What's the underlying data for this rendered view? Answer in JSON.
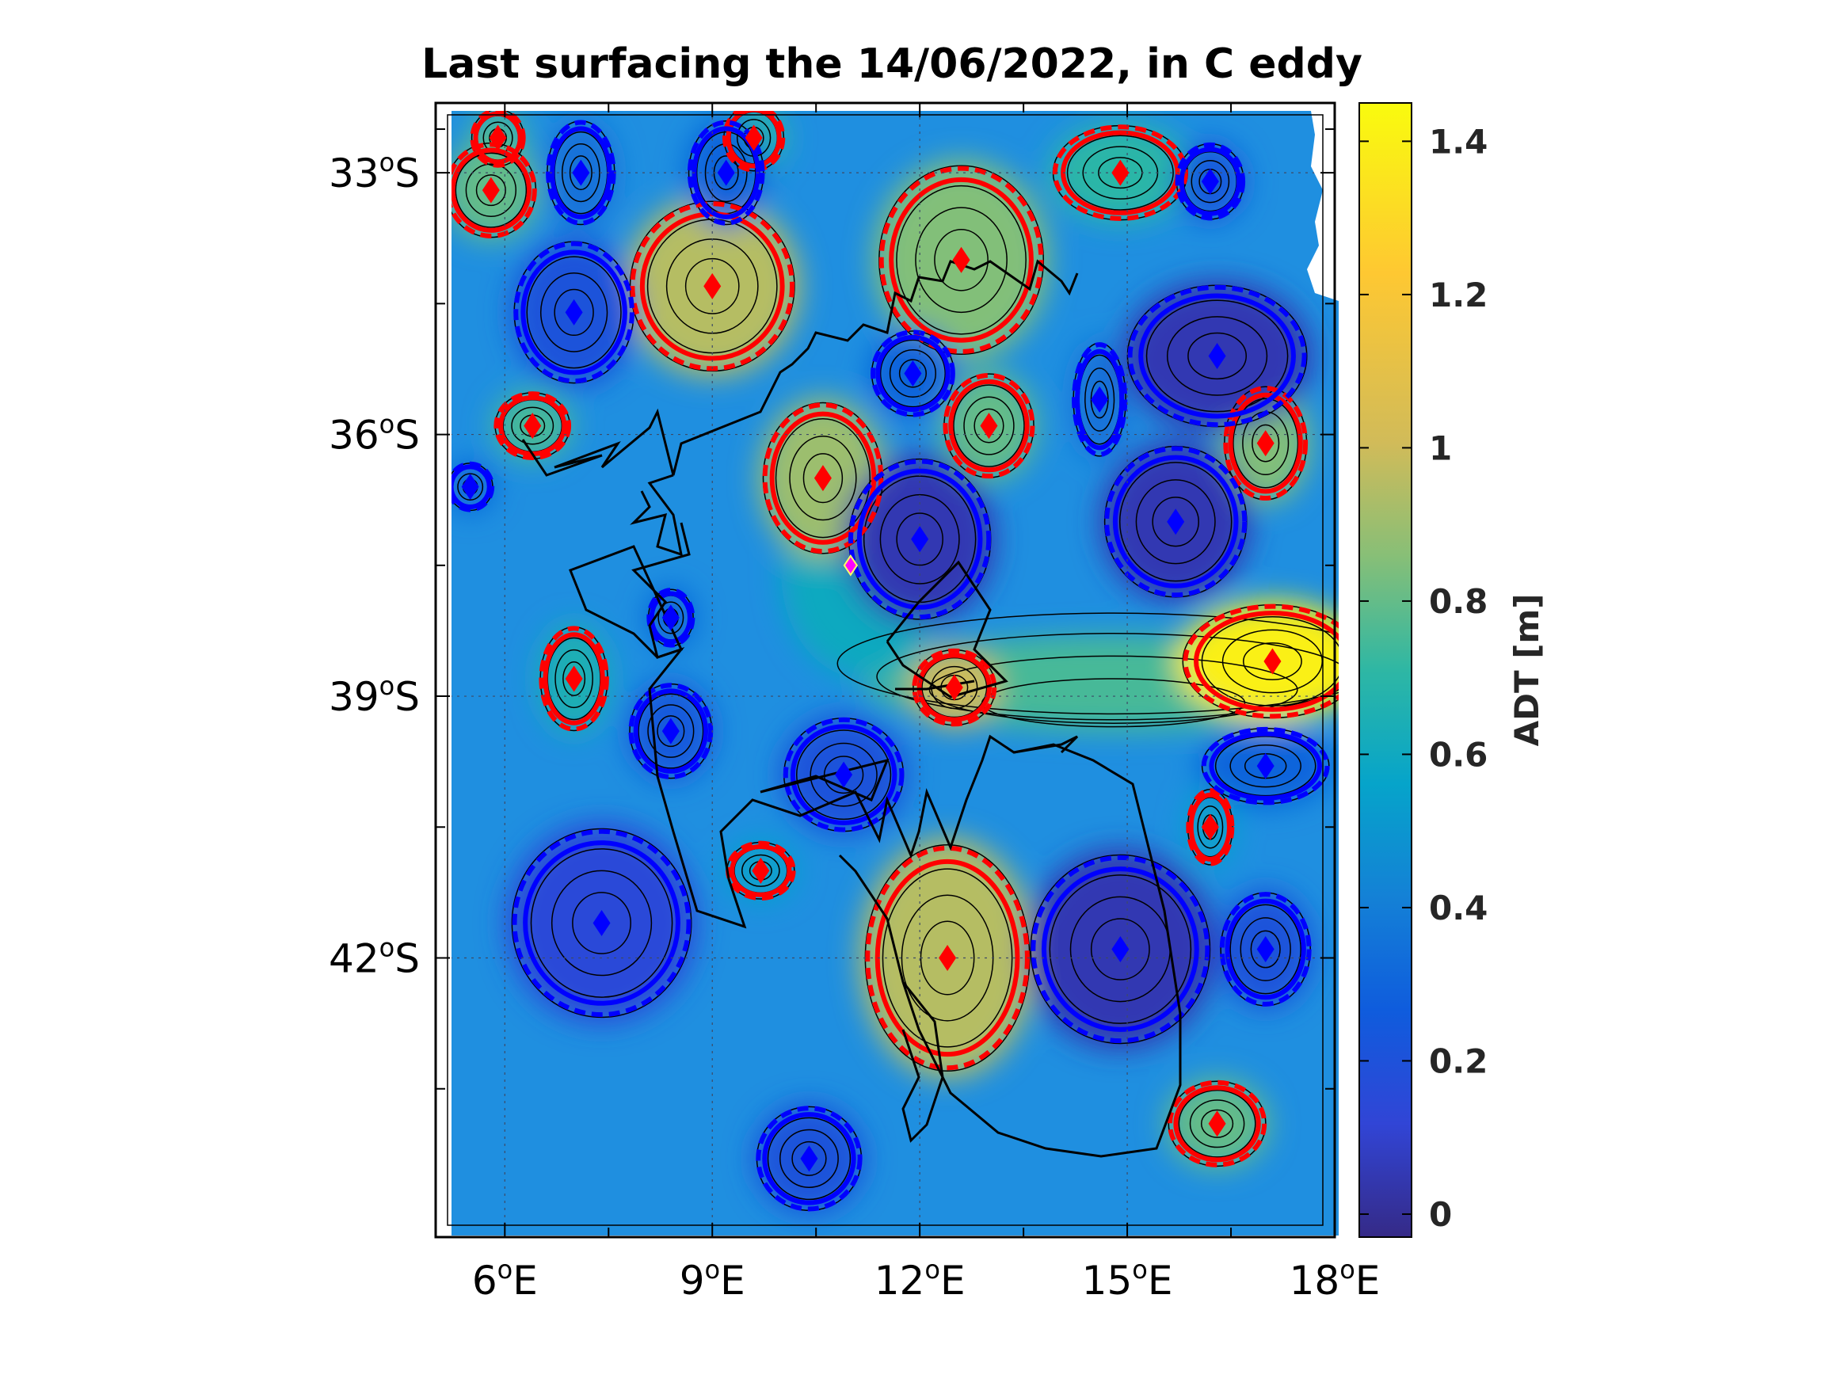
{
  "title": "Last surfacing the 14/06/2022, in C eddy",
  "map": {
    "lon_range": [
      5,
      18
    ],
    "lat_range": [
      -45.2,
      -32.2
    ],
    "lon_ticks": [
      {
        "value": 6,
        "label": "6",
        "sup": "o",
        "hemi": "E"
      },
      {
        "value": 9,
        "label": "9",
        "sup": "o",
        "hemi": "E"
      },
      {
        "value": 12,
        "label": "12",
        "sup": "o",
        "hemi": "E"
      },
      {
        "value": 15,
        "label": "15",
        "sup": "o",
        "hemi": "E"
      },
      {
        "value": 18,
        "label": "18",
        "sup": "o",
        "hemi": "E"
      }
    ],
    "lat_ticks": [
      {
        "value": -33,
        "label": "33",
        "sup": "o",
        "hemi": "S"
      },
      {
        "value": -36,
        "label": "36",
        "sup": "o",
        "hemi": "S"
      },
      {
        "value": -39,
        "label": "39",
        "sup": "o",
        "hemi": "S"
      },
      {
        "value": -42,
        "label": "42",
        "sup": "o",
        "hemi": "S"
      }
    ],
    "grid": true,
    "last_surfacing": {
      "lon": 11.0,
      "lat": -37.5,
      "color": "#ff00ff"
    },
    "colors": {
      "anticyclone": "#ff0000",
      "cyclone": "#0000ff",
      "trajectory": "#000000",
      "contour": "#000000"
    }
  },
  "eddies": [
    {
      "type": "anticyclone",
      "lon": 5.9,
      "lat": -32.6,
      "a": 0.35,
      "b": 0.3,
      "adt": 0.75
    },
    {
      "type": "anticyclone",
      "lon": 9.6,
      "lat": -32.6,
      "a": 0.4,
      "b": 0.35,
      "adt": 0.7
    },
    {
      "type": "anticyclone",
      "lon": 5.8,
      "lat": -33.2,
      "a": 0.6,
      "b": 0.5,
      "adt": 0.8
    },
    {
      "type": "anticyclone",
      "lon": 9.0,
      "lat": -34.3,
      "a": 1.1,
      "b": 0.9,
      "adt": 0.95
    },
    {
      "type": "anticyclone",
      "lon": 12.6,
      "lat": -34.0,
      "a": 1.1,
      "b": 1.0,
      "adt": 0.85
    },
    {
      "type": "anticyclone",
      "lon": 14.9,
      "lat": -33.0,
      "a": 0.9,
      "b": 0.5,
      "adt": 0.7
    },
    {
      "type": "anticyclone",
      "lon": 6.4,
      "lat": -35.9,
      "a": 0.5,
      "b": 0.35,
      "adt": 0.75
    },
    {
      "type": "anticyclone",
      "lon": 10.6,
      "lat": -36.5,
      "a": 0.8,
      "b": 0.8,
      "adt": 0.9
    },
    {
      "type": "anticyclone",
      "lon": 13.0,
      "lat": -35.9,
      "a": 0.6,
      "b": 0.55,
      "adt": 0.8
    },
    {
      "type": "anticyclone",
      "lon": 17.0,
      "lat": -36.1,
      "a": 0.55,
      "b": 0.6,
      "adt": 0.85
    },
    {
      "type": "anticyclone",
      "lon": 7.0,
      "lat": -38.8,
      "a": 0.45,
      "b": 0.55,
      "adt": 0.65
    },
    {
      "type": "anticyclone",
      "lon": 12.5,
      "lat": -38.9,
      "a": 0.55,
      "b": 0.4,
      "adt": 1.0
    },
    {
      "type": "anticyclone",
      "lon": 17.1,
      "lat": -38.6,
      "a": 1.2,
      "b": 0.6,
      "adt": 1.4
    },
    {
      "type": "anticyclone",
      "lon": 16.2,
      "lat": -40.5,
      "a": 0.3,
      "b": 0.4,
      "adt": 0.55
    },
    {
      "type": "anticyclone",
      "lon": 9.7,
      "lat": -41.0,
      "a": 0.45,
      "b": 0.3,
      "adt": 0.55
    },
    {
      "type": "anticyclone",
      "lon": 12.4,
      "lat": -42.0,
      "a": 1.1,
      "b": 1.2,
      "adt": 0.95
    },
    {
      "type": "anticyclone",
      "lon": 16.3,
      "lat": -43.9,
      "a": 0.65,
      "b": 0.45,
      "adt": 0.8
    },
    {
      "type": "cyclone",
      "lon": 7.1,
      "lat": -33.0,
      "a": 0.45,
      "b": 0.55,
      "adt": 0.35
    },
    {
      "type": "cyclone",
      "lon": 9.2,
      "lat": -33.0,
      "a": 0.5,
      "b": 0.55,
      "adt": 0.3
    },
    {
      "type": "cyclone",
      "lon": 7.0,
      "lat": -34.6,
      "a": 0.8,
      "b": 0.75,
      "adt": 0.2
    },
    {
      "type": "cyclone",
      "lon": 11.9,
      "lat": -35.3,
      "a": 0.55,
      "b": 0.45,
      "adt": 0.3
    },
    {
      "type": "cyclone",
      "lon": 14.6,
      "lat": -35.6,
      "a": 0.35,
      "b": 0.6,
      "adt": 0.35
    },
    {
      "type": "cyclone",
      "lon": 16.3,
      "lat": -35.1,
      "a": 1.2,
      "b": 0.75,
      "adt": 0.05
    },
    {
      "type": "cyclone",
      "lon": 16.2,
      "lat": -33.1,
      "a": 0.45,
      "b": 0.4,
      "adt": 0.25
    },
    {
      "type": "cyclone",
      "lon": 12.0,
      "lat": -37.2,
      "a": 0.95,
      "b": 0.85,
      "adt": 0.05
    },
    {
      "type": "cyclone",
      "lon": 15.7,
      "lat": -37.0,
      "a": 0.95,
      "b": 0.8,
      "adt": 0.05
    },
    {
      "type": "cyclone",
      "lon": 5.5,
      "lat": -36.6,
      "a": 0.3,
      "b": 0.25,
      "adt": 0.3
    },
    {
      "type": "cyclone",
      "lon": 8.4,
      "lat": -38.1,
      "a": 0.3,
      "b": 0.3,
      "adt": 0.3
    },
    {
      "type": "cyclone",
      "lon": 8.4,
      "lat": -39.4,
      "a": 0.55,
      "b": 0.5,
      "adt": 0.25
    },
    {
      "type": "cyclone",
      "lon": 10.9,
      "lat": -39.9,
      "a": 0.8,
      "b": 0.6,
      "adt": 0.2
    },
    {
      "type": "cyclone",
      "lon": 17.0,
      "lat": -39.8,
      "a": 0.85,
      "b": 0.4,
      "adt": 0.3
    },
    {
      "type": "cyclone",
      "lon": 7.4,
      "lat": -41.6,
      "a": 1.2,
      "b": 1.0,
      "adt": 0.15
    },
    {
      "type": "cyclone",
      "lon": 14.9,
      "lat": -41.9,
      "a": 1.2,
      "b": 1.0,
      "adt": 0.05
    },
    {
      "type": "cyclone",
      "lon": 17.0,
      "lat": -41.9,
      "a": 0.6,
      "b": 0.6,
      "adt": 0.2
    },
    {
      "type": "cyclone",
      "lon": 10.4,
      "lat": -44.3,
      "a": 0.7,
      "b": 0.55,
      "adt": 0.2
    }
  ],
  "colorbar": {
    "label": "ADT [m]",
    "range": [
      -0.03,
      1.45
    ],
    "ticks": [
      {
        "value": 0,
        "label": "0"
      },
      {
        "value": 0.2,
        "label": "0.2"
      },
      {
        "value": 0.4,
        "label": "0.4"
      },
      {
        "value": 0.6,
        "label": "0.6"
      },
      {
        "value": 0.8,
        "label": "0.8"
      },
      {
        "value": 1.0,
        "label": "1"
      },
      {
        "value": 1.2,
        "label": "1.2"
      },
      {
        "value": 1.4,
        "label": "1.4"
      }
    ],
    "colormap": "parula"
  }
}
